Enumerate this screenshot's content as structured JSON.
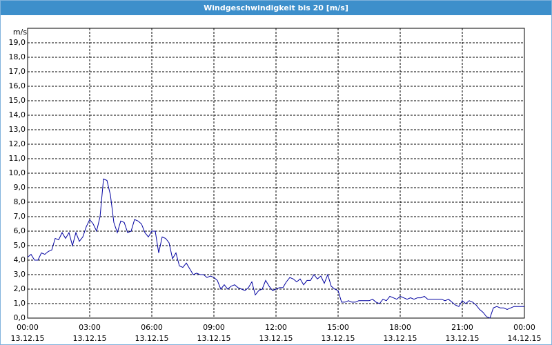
{
  "chart_data": {
    "type": "line",
    "title": "Windgeschwindigkeit bis 20 [m/s]",
    "y_label": "m/s",
    "x": [
      0,
      10,
      20,
      30,
      40,
      50,
      60,
      70,
      80,
      90,
      100,
      110,
      120,
      130,
      140,
      150,
      160,
      170,
      180,
      190,
      200,
      210,
      220,
      230,
      240,
      250,
      260,
      270,
      280,
      290,
      300,
      310,
      320,
      330,
      340,
      350,
      360,
      370,
      380,
      390,
      400,
      410,
      420,
      430,
      440,
      450,
      460,
      470,
      480,
      490,
      500,
      510,
      520,
      530,
      540,
      550,
      560,
      570,
      580,
      590,
      600,
      610,
      620,
      630,
      640,
      650,
      660,
      670,
      680,
      690,
      700,
      710,
      720,
      730,
      740,
      750,
      760,
      770,
      780,
      790,
      800,
      810,
      820,
      830,
      840,
      850,
      860,
      870,
      880,
      890,
      900,
      910,
      920,
      930,
      940,
      950,
      960,
      970,
      980,
      990,
      1000,
      1010,
      1020,
      1030,
      1040,
      1050,
      1060,
      1070,
      1080,
      1090,
      1100,
      1110,
      1120,
      1130,
      1140,
      1150,
      1160,
      1170,
      1180,
      1190,
      1200,
      1210,
      1220,
      1230,
      1240,
      1250,
      1260,
      1270,
      1280,
      1290,
      1300,
      1310,
      1320,
      1330,
      1340,
      1350,
      1360,
      1370,
      1380,
      1390,
      1400,
      1410,
      1420,
      1430,
      1440
    ],
    "series": [
      {
        "name": "Windgeschwindigkeit",
        "color": "#0000a0",
        "values": [
          4.2,
          4.4,
          4.0,
          4.0,
          4.5,
          4.4,
          4.6,
          4.7,
          5.5,
          5.4,
          5.9,
          5.5,
          5.9,
          5.0,
          5.9,
          5.3,
          5.6,
          6.3,
          6.8,
          6.5,
          6.0,
          7.0,
          9.6,
          9.5,
          8.5,
          6.6,
          5.9,
          6.7,
          6.6,
          5.9,
          6.0,
          6.8,
          6.7,
          6.5,
          5.9,
          5.6,
          6.0,
          6.0,
          4.5,
          5.6,
          5.5,
          5.2,
          4.1,
          4.5,
          3.6,
          3.5,
          3.8,
          3.4,
          3.0,
          3.1,
          3.0,
          3.0,
          2.8,
          2.9,
          2.8,
          2.6,
          2.0,
          2.3,
          2.0,
          2.2,
          2.3,
          2.1,
          2.0,
          1.9,
          2.1,
          2.5,
          1.6,
          1.9,
          2.0,
          2.6,
          2.2,
          1.9,
          2.0,
          2.1,
          2.1,
          2.5,
          2.8,
          2.7,
          2.5,
          2.7,
          2.3,
          2.6,
          2.6,
          3.0,
          2.7,
          2.9,
          2.4,
          3.0,
          2.2,
          2.0,
          1.9,
          1.1,
          1.1,
          1.2,
          1.1,
          1.1,
          1.2,
          1.2,
          1.2,
          1.2,
          1.3,
          1.1,
          1.0,
          1.3,
          1.2,
          1.5,
          1.4,
          1.3,
          1.5,
          1.4,
          1.3,
          1.4,
          1.3,
          1.4,
          1.4,
          1.5,
          1.3,
          1.3,
          1.3,
          1.3,
          1.3,
          1.2,
          1.3,
          1.1,
          0.9,
          0.8,
          1.2,
          1.0,
          1.2,
          1.1,
          0.9,
          0.6,
          0.4,
          0.1,
          0.0,
          0.7,
          0.8,
          0.7,
          0.7,
          0.6,
          0.7,
          0.8,
          0.8,
          0.8,
          0.8
        ]
      }
    ],
    "xlim": [
      0,
      1440
    ],
    "xticks": [
      {
        "value": 0,
        "label": "00:00",
        "date": "13.12.15"
      },
      {
        "value": 180,
        "label": "03:00",
        "date": "13.12.15"
      },
      {
        "value": 360,
        "label": "06:00",
        "date": "13.12.15"
      },
      {
        "value": 540,
        "label": "09:00",
        "date": "13.12.15"
      },
      {
        "value": 720,
        "label": "12:00",
        "date": "13.12.15"
      },
      {
        "value": 900,
        "label": "15:00",
        "date": "13.12.15"
      },
      {
        "value": 1080,
        "label": "18:00",
        "date": "13.12.15"
      },
      {
        "value": 1260,
        "label": "21:00",
        "date": "13.12.15"
      },
      {
        "value": 1440,
        "label": "00:00",
        "date": "14.12.15"
      }
    ],
    "ylim": [
      0,
      20
    ],
    "yticks": [
      {
        "value": 0,
        "label": "0,0"
      },
      {
        "value": 1,
        "label": "1,0"
      },
      {
        "value": 2,
        "label": "2,0"
      },
      {
        "value": 3,
        "label": "3,0"
      },
      {
        "value": 4,
        "label": "4,0"
      },
      {
        "value": 5,
        "label": "5,0"
      },
      {
        "value": 6,
        "label": "6,0"
      },
      {
        "value": 7,
        "label": "7,0"
      },
      {
        "value": 8,
        "label": "8,0"
      },
      {
        "value": 9,
        "label": "9,0"
      },
      {
        "value": 10,
        "label": "10,0"
      },
      {
        "value": 11,
        "label": "11,0"
      },
      {
        "value": 12,
        "label": "12,0"
      },
      {
        "value": 13,
        "label": "13,0"
      },
      {
        "value": 14,
        "label": "14,0"
      },
      {
        "value": 15,
        "label": "15,0"
      },
      {
        "value": 16,
        "label": "16,0"
      },
      {
        "value": 17,
        "label": "17,0"
      },
      {
        "value": 18,
        "label": "18,0"
      },
      {
        "value": 19,
        "label": "19,0"
      }
    ],
    "grid": true
  }
}
